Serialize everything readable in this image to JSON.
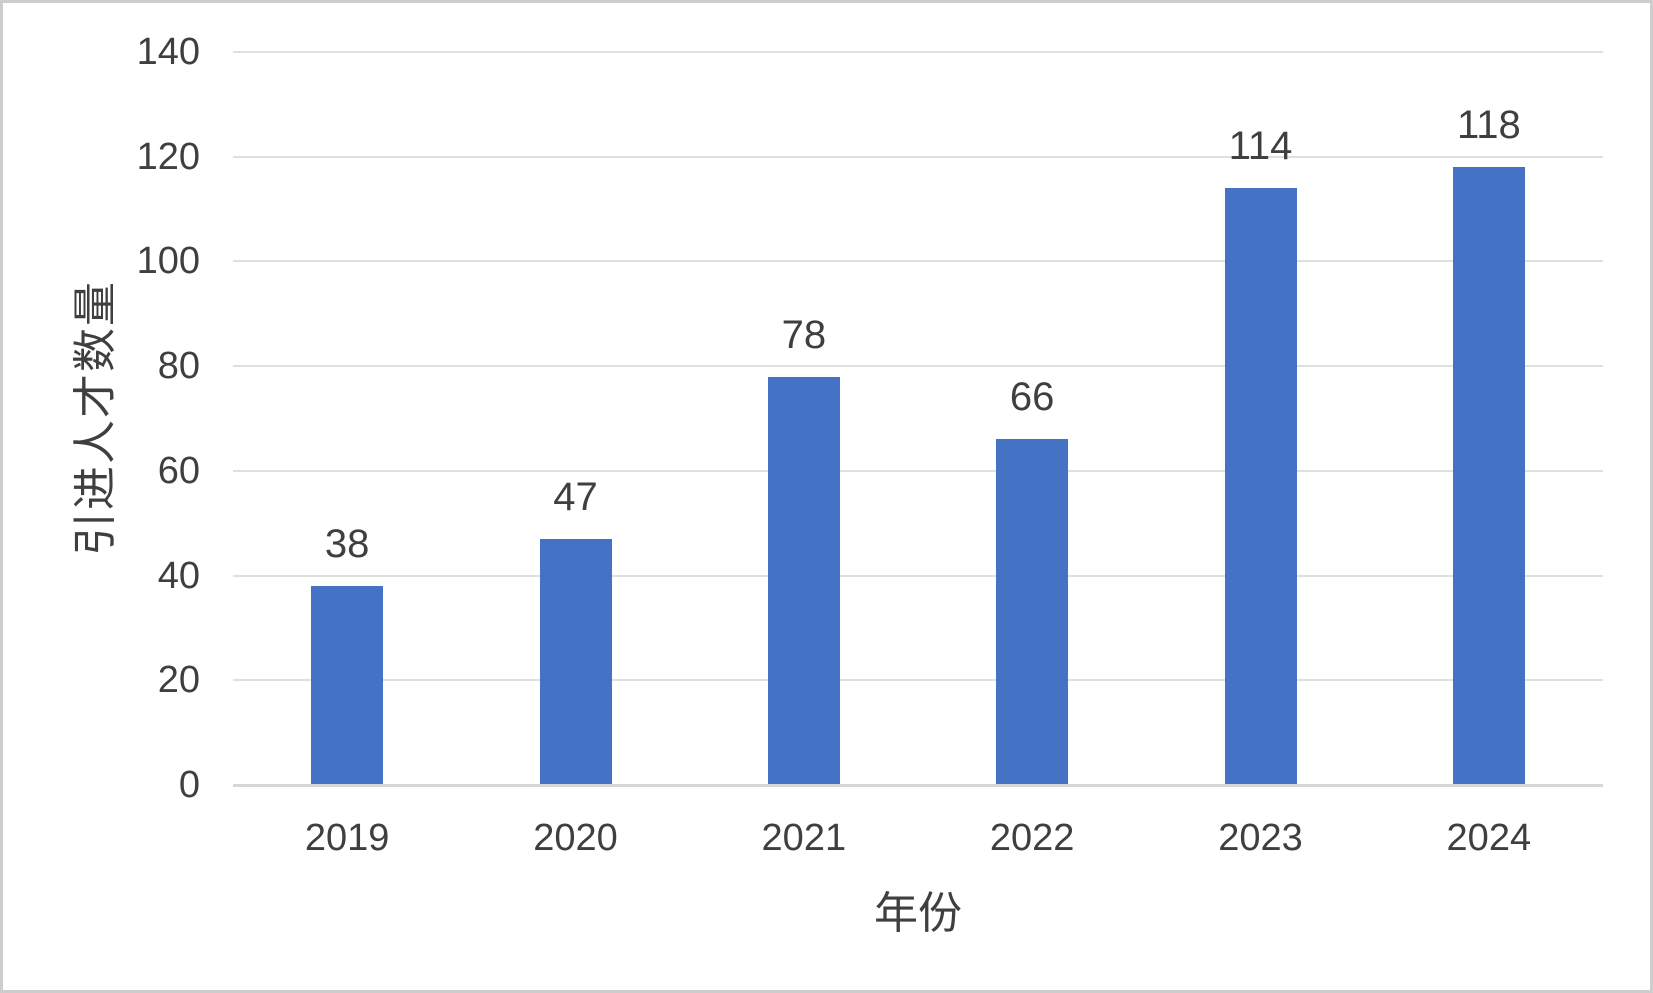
{
  "chart_data": {
    "type": "bar",
    "title": "",
    "categories": [
      "2019",
      "2020",
      "2021",
      "2022",
      "2023",
      "2024"
    ],
    "values": [
      38,
      47,
      78,
      66,
      114,
      118
    ],
    "xlabel": "年份",
    "ylabel": "引进人才数量",
    "ylim": [
      0,
      140
    ],
    "ytick_step": 20,
    "grid": true,
    "legend": "none",
    "data_labels": "above bars",
    "colors": {
      "bar": "#4472C4",
      "gridline": "#E0E0E0",
      "axis_line": "#D6D6D6",
      "text": "#3F3F3F",
      "background": "#FFFFFF",
      "border": "#CDCDCD"
    }
  }
}
